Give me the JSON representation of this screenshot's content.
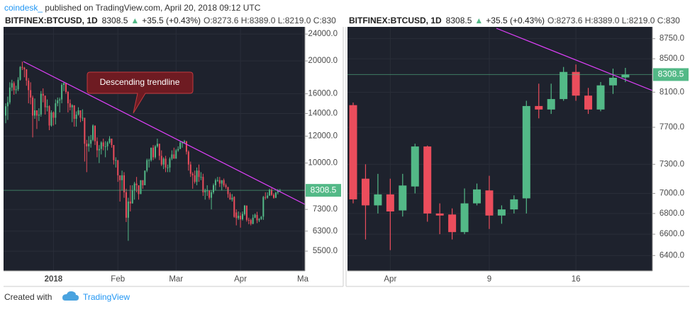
{
  "header": {
    "author": "coindesk_",
    "published": "published on TradingView.com, April 20, 2018 09:12 UTC"
  },
  "footer": {
    "created_with": "Created with",
    "brand": "TradingView"
  },
  "chart_data": [
    {
      "type": "candlestick",
      "log_scale": true,
      "grid": true,
      "up_color": "#53b987",
      "down_color": "#eb4d5c",
      "legend": {
        "symbol": "BITFINEX:BTCUSD, 1D",
        "arrow": "▲",
        "change": "+35.5 (+0.43%)",
        "ohlc": "O:8273.6 H:8389.0 L:8219.0 C:830"
      },
      "annotation": "Descending trendline",
      "categories": [
        null,
        null,
        null,
        null,
        null,
        null,
        null,
        null,
        null,
        null,
        null,
        null,
        null,
        null,
        null,
        null,
        null,
        null,
        null,
        null,
        null,
        null,
        null,
        "2018",
        null,
        null,
        null,
        null,
        null,
        null,
        null,
        null,
        null,
        null,
        null,
        null,
        null,
        null,
        null,
        null,
        null,
        null,
        null,
        null,
        null,
        null,
        null,
        null,
        null,
        null,
        null,
        null,
        null,
        null,
        "Feb",
        null,
        null,
        null,
        null,
        null,
        null,
        null,
        null,
        null,
        null,
        null,
        null,
        null,
        null,
        null,
        null,
        null,
        null,
        null,
        null,
        null,
        null,
        null,
        null,
        null,
        null,
        null,
        "Mar",
        null,
        null,
        null,
        null,
        null,
        null,
        null,
        null,
        null,
        null,
        null,
        null,
        null,
        null,
        null,
        null,
        null,
        null,
        null,
        null,
        null,
        null,
        null,
        null,
        null,
        null,
        null,
        null,
        null,
        null,
        "Apr",
        null,
        null,
        null,
        null,
        null,
        null,
        null,
        null,
        null,
        null,
        null,
        null,
        null,
        null,
        null,
        null,
        null,
        null,
        null,
        null,
        null,
        null,
        null,
        null,
        null,
        null,
        null,
        null,
        null,
        "Ma"
      ],
      "open": [
        13800,
        14700,
        15100,
        16700,
        17200,
        16400,
        16500,
        17600,
        19200,
        19100,
        18900,
        17500,
        16400,
        15600,
        13800,
        14300,
        13800,
        13900,
        16000,
        15800,
        14600,
        14700,
        12900,
        14100,
        13600,
        15000,
        15300,
        15400,
        17000,
        17200,
        16200,
        15000,
        14600,
        14800,
        13500,
        13900,
        14300,
        13600,
        13600,
        11400,
        11200,
        11400,
        11700,
        12900,
        11600,
        10900,
        11000,
        11500,
        11200,
        11200,
        11500,
        11800,
        11300,
        10200,
        10200,
        9200,
        8900,
        9200,
        8200,
        6900,
        7700,
        7600,
        8300,
        8700,
        8600,
        8100,
        8900,
        8600,
        9500,
        10200,
        10200,
        11100,
        10400,
        11200,
        11400,
        10500,
        9900,
        10300,
        9700,
        9700,
        10300,
        10600,
        10300,
        10900,
        11000,
        11500,
        11500,
        11600,
        10800,
        9900,
        9300,
        9200,
        8800,
        9500,
        9100,
        9100,
        8200,
        8300,
        8300,
        7900,
        8200,
        8600,
        8900,
        8900,
        8700,
        8900,
        8600,
        8500,
        8100,
        7800,
        7950,
        7150,
        6880,
        6990,
        6830,
        7070,
        7490,
        6800,
        6790,
        6620,
        6900,
        7030,
        6780,
        6840,
        6950,
        7940,
        7900,
        8020,
        8340,
        8060,
        7900,
        8180,
        8273.6,
        null,
        null,
        null,
        null,
        null,
        null,
        null,
        null,
        null,
        null,
        null
      ],
      "high": [
        15000,
        15700,
        17300,
        17600,
        17400,
        16900,
        17900,
        19300,
        19900,
        19200,
        18900,
        17800,
        17300,
        15800,
        15500,
        14300,
        14500,
        16300,
        16600,
        15800,
        15400,
        14800,
        14300,
        14200,
        15400,
        15600,
        15600,
        17200,
        17300,
        17200,
        16300,
        15400,
        14900,
        14800,
        14200,
        14600,
        14300,
        14400,
        13600,
        11700,
        12000,
        12100,
        13000,
        12900,
        11900,
        11300,
        11600,
        11800,
        11600,
        11600,
        12000,
        11800,
        11300,
        10400,
        10200,
        9100,
        9500,
        9400,
        8400,
        7900,
        8600,
        8600,
        8800,
        9100,
        8600,
        8900,
        8900,
        9500,
        10300,
        10300,
        11100,
        11300,
        11300,
        11800,
        11400,
        10900,
        10400,
        10500,
        9900,
        10400,
        10900,
        11100,
        11000,
        11200,
        11600,
        11600,
        11700,
        11600,
        10900,
        10100,
        9400,
        9500,
        9700,
        9900,
        9400,
        9300,
        8400,
        8600,
        8300,
        8300,
        8700,
        9000,
        9100,
        9100,
        8900,
        9000,
        8700,
        8500,
        8200,
        8100,
        7980,
        7300,
        7200,
        7150,
        7200,
        7520,
        7500,
        6900,
        6850,
        7050,
        7100,
        7180,
        6880,
        6980,
        8000,
        8200,
        8200,
        8400,
        8430,
        8150,
        8220,
        8380,
        8389,
        null,
        null,
        null,
        null,
        null,
        null,
        null,
        null,
        null,
        null,
        null
      ],
      "low": [
        13100,
        13400,
        14900,
        16300,
        15900,
        16000,
        16300,
        17500,
        18800,
        17900,
        16900,
        15000,
        14900,
        11900,
        13500,
        12600,
        13300,
        13700,
        15100,
        13900,
        14200,
        12500,
        12800,
        12900,
        13000,
        14700,
        14100,
        15000,
        16300,
        16000,
        14100,
        14300,
        13200,
        12800,
        12800,
        13800,
        13200,
        13300,
        10100,
        9400,
        10800,
        11100,
        11600,
        11300,
        10400,
        10000,
        10600,
        10900,
        10400,
        10900,
        11400,
        11100,
        9900,
        9700,
        8800,
        7700,
        8300,
        7900,
        6700,
        5900,
        7200,
        7600,
        7800,
        8200,
        7800,
        8100,
        8400,
        8600,
        9400,
        9700,
        10100,
        10200,
        10300,
        11100,
        10200,
        9800,
        9600,
        9400,
        9400,
        9400,
        10200,
        10300,
        10300,
        10800,
        11000,
        11100,
        11400,
        10600,
        9500,
        9100,
        8400,
        8700,
        8600,
        8800,
        8900,
        8000,
        7800,
        8000,
        7800,
        7300,
        8100,
        8300,
        8800,
        8500,
        8300,
        8500,
        8400,
        7900,
        7800,
        7700,
        6900,
        6550,
        6800,
        6450,
        6770,
        7000,
        6720,
        6600,
        6550,
        6600,
        6880,
        6650,
        6700,
        6800,
        6800,
        7800,
        7850,
        8000,
        8000,
        7850,
        7880,
        8080,
        8219,
        null,
        null,
        null,
        null,
        null,
        null,
        null,
        null,
        null,
        null,
        null
      ],
      "close": [
        14700,
        15100,
        16700,
        17200,
        16400,
        16500,
        17600,
        19200,
        19100,
        18900,
        17500,
        16400,
        15600,
        13800,
        14300,
        13800,
        13900,
        16000,
        15800,
        14600,
        14700,
        12900,
        14100,
        13600,
        15000,
        15300,
        15400,
        17000,
        17200,
        16200,
        15000,
        14600,
        14800,
        13500,
        13900,
        14300,
        13600,
        13600,
        11400,
        11200,
        11400,
        11700,
        12900,
        11600,
        10900,
        11000,
        11500,
        11200,
        11200,
        11500,
        11800,
        11300,
        10200,
        10200,
        9200,
        8900,
        9200,
        8200,
        6900,
        7700,
        7600,
        8300,
        8700,
        8600,
        8100,
        8900,
        8600,
        9500,
        10200,
        10200,
        11100,
        10400,
        11200,
        11400,
        10500,
        9900,
        10300,
        9700,
        9700,
        10300,
        10600,
        10300,
        10900,
        11000,
        11500,
        11500,
        11600,
        10800,
        9900,
        9300,
        9200,
        8800,
        9500,
        9100,
        9100,
        8200,
        8300,
        8300,
        7900,
        8200,
        8600,
        8900,
        8900,
        8700,
        8900,
        8600,
        8500,
        8100,
        7800,
        7900,
        6940,
        6880,
        6990,
        6820,
        7080,
        7490,
        6800,
        6780,
        6620,
        6900,
        7040,
        6780,
        6840,
        6940,
        7940,
        7900,
        8020,
        8340,
        8060,
        7900,
        8180,
        8270,
        8308.5,
        null,
        null,
        null,
        null,
        null,
        null,
        null,
        null,
        null,
        null,
        null
      ],
      "ylim": [
        4810,
        25200
      ],
      "yticks": [
        {
          "value": 5500,
          "label": "5500.0"
        },
        {
          "value": 6300,
          "label": "6300.0"
        },
        {
          "value": 7300,
          "label": "7300.0"
        },
        {
          "value": 10000,
          "label": "10000.0"
        },
        {
          "value": 12000,
          "label": "12000.0"
        },
        {
          "value": 14000,
          "label": "14000.0"
        },
        {
          "value": 16000,
          "label": "16000.0"
        },
        {
          "value": 20000,
          "label": "20000.0"
        },
        {
          "value": 24000,
          "label": "24000.0"
        }
      ]
    },
    {
      "type": "candlestick",
      "log_scale": true,
      "grid": true,
      "up_color": "#53b987",
      "down_color": "#eb4d5c",
      "legend": {
        "symbol": "BITFINEX:BTCUSD, 1D",
        "arrow": "▲",
        "change": "+35.5 (+0.43%)",
        "ohlc": "O:8273.6 H:8389.0 L:8219.0 C:830"
      },
      "categories": [
        null,
        null,
        null,
        "Apr",
        null,
        null,
        null,
        null,
        null,
        null,
        null,
        "9",
        null,
        null,
        null,
        null,
        null,
        null,
        "16",
        null,
        null,
        null,
        null,
        null,
        null
      ],
      "open": [
        7950,
        7150,
        6880,
        6990,
        6830,
        7070,
        7490,
        6800,
        6790,
        6620,
        6900,
        7030,
        6780,
        6840,
        6950,
        7940,
        7900,
        8020,
        8340,
        8060,
        7900,
        8180,
        8273.6,
        null,
        null
      ],
      "high": [
        7980,
        7300,
        7200,
        7150,
        7200,
        7520,
        7500,
        6900,
        6850,
        7050,
        7100,
        7180,
        6880,
        6980,
        8000,
        8200,
        8200,
        8400,
        8430,
        8150,
        8220,
        8380,
        8389,
        null,
        null
      ],
      "low": [
        6900,
        6550,
        6800,
        6450,
        6770,
        7000,
        6720,
        6600,
        6550,
        6600,
        6880,
        6650,
        6700,
        6800,
        6800,
        7800,
        7850,
        8000,
        8000,
        7850,
        7880,
        8080,
        8219,
        null,
        null
      ],
      "close": [
        6940,
        6880,
        6990,
        6820,
        7080,
        7490,
        6800,
        6780,
        6620,
        6900,
        7040,
        6780,
        6840,
        6940,
        7940,
        7900,
        8020,
        8340,
        8060,
        7900,
        8180,
        8270,
        8308.5,
        null,
        null
      ],
      "ylim": [
        6260,
        8900
      ],
      "yticks": [
        {
          "value": 6400,
          "label": "6400.0"
        },
        {
          "value": 6600,
          "label": "6600.0"
        },
        {
          "value": 6800,
          "label": "6800.0"
        },
        {
          "value": 7000,
          "label": "7000.0"
        },
        {
          "value": 7300,
          "label": "7300.0"
        },
        {
          "value": 7700,
          "label": "7700.0"
        },
        {
          "value": 8100,
          "label": "8100.0"
        },
        {
          "value": 8500,
          "label": "8500.0"
        },
        {
          "value": 8750,
          "label": "8750.0"
        }
      ]
    }
  ]
}
